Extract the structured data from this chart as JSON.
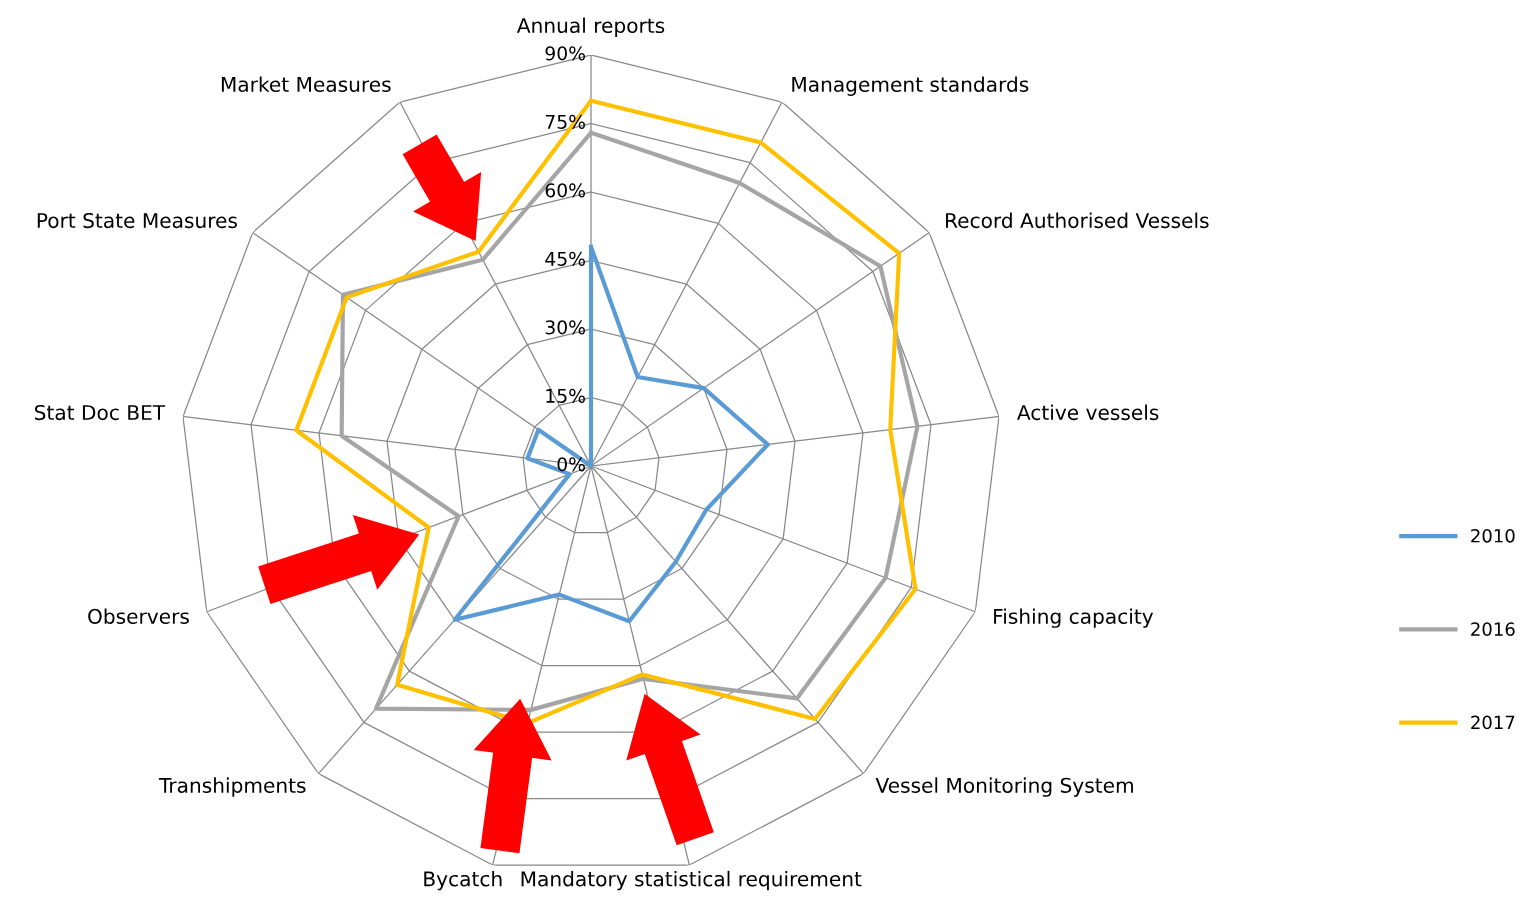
{
  "chart_data": {
    "type": "radar",
    "categories": [
      "Annual reports",
      "Management standards",
      "Record Authorised Vessels",
      "Active vessels",
      "Fishing capacity",
      "Vessel Monitoring System",
      "Mandatory statistical requirement",
      "Bycatch",
      "Transhipments",
      "Observers",
      "Stat Doc BET",
      "Port State Measures",
      "Market Measures"
    ],
    "series": [
      {
        "name": "2010",
        "color": "#5b9bd5",
        "values": [
          48,
          22,
          30,
          39,
          27,
          28,
          35,
          29,
          45,
          5,
          14,
          14,
          0
        ]
      },
      {
        "name": "2016",
        "color": "#a5a5a5",
        "values": [
          73,
          70,
          77,
          72,
          69,
          68,
          48,
          55,
          71,
          31,
          55,
          66,
          51
        ]
      },
      {
        "name": "2017",
        "color": "#ffc000",
        "values": [
          80,
          80,
          82,
          66,
          76,
          74,
          47,
          58,
          64,
          38,
          65,
          65,
          53
        ]
      }
    ],
    "ylim": [
      0,
      90
    ],
    "yticks": [
      {
        "value": 0,
        "label": "0%"
      },
      {
        "value": 15,
        "label": "15%"
      },
      {
        "value": 30,
        "label": "30%"
      },
      {
        "value": 45,
        "label": "45%"
      },
      {
        "value": 60,
        "label": "60%"
      },
      {
        "value": 75,
        "label": "75%"
      },
      {
        "value": 90,
        "label": "90%"
      }
    ],
    "grid": true,
    "legend": "right",
    "marker": "none",
    "line_style": "solid"
  }
}
